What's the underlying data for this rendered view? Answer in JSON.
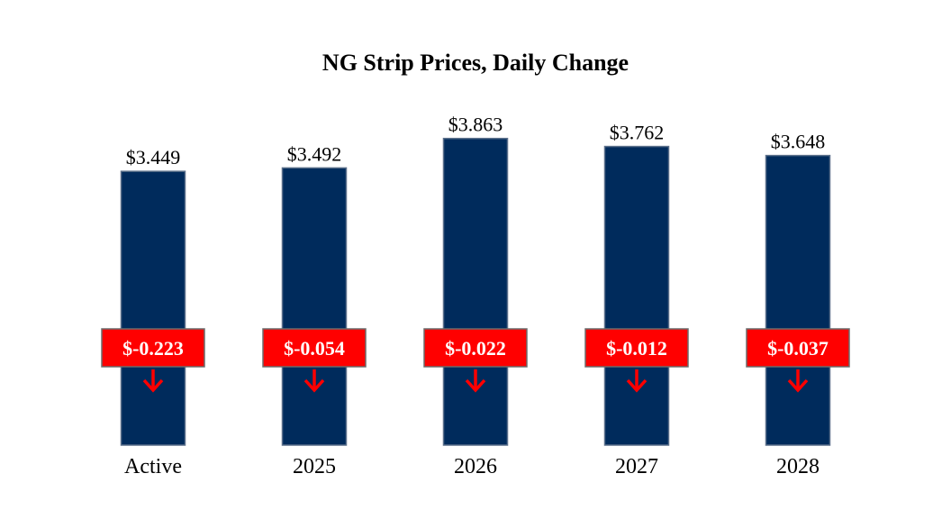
{
  "colors": {
    "bar": "#002b5c",
    "bar_border": "#5a6f8a",
    "change_box": "#ff0000",
    "change_box_border": "#6b6b6b",
    "arrow": "#ff0000"
  },
  "icons": {
    "change_indicator": "arrow-down-icon"
  },
  "chart_data": {
    "type": "bar",
    "title": "NG Strip Prices, Daily Change",
    "xlabel": "",
    "ylabel": "",
    "grid": false,
    "categories": [
      "Active",
      "2025",
      "2026",
      "2027",
      "2028"
    ],
    "values": [
      3.449,
      3.492,
      3.863,
      3.762,
      3.648
    ],
    "value_labels": [
      "$3.449",
      "$3.492",
      "$3.863",
      "$3.762",
      "$3.648"
    ],
    "changes": [
      -0.223,
      -0.054,
      -0.022,
      -0.012,
      -0.037
    ],
    "change_labels": [
      "$-0.223",
      "$-0.054",
      "$-0.022",
      "$-0.012",
      "$-0.037"
    ],
    "change_direction": [
      "down",
      "down",
      "down",
      "down",
      "down"
    ]
  }
}
